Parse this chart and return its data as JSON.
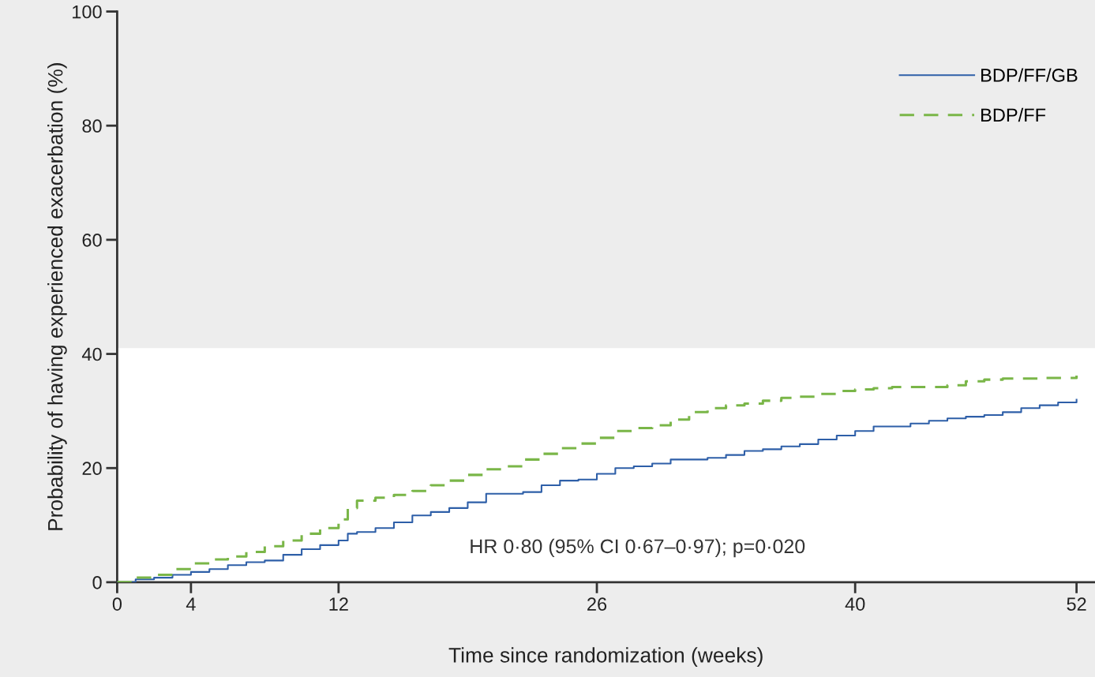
{
  "chart_data": {
    "type": "step",
    "xlabel": "Time since randomization (weeks)",
    "ylabel": "Probability of having experienced exacerbation (%)",
    "xlim": [
      0,
      53
    ],
    "xticks": [
      0,
      4,
      12,
      26,
      40,
      52
    ],
    "ylim": [
      0,
      100
    ],
    "yticks": [
      0,
      20,
      40,
      60,
      80,
      100
    ],
    "grid": false,
    "legend": "top right",
    "marker": "none",
    "bands": [
      {
        "axis": "y",
        "from": 0,
        "to": 41,
        "color": "#ffffff"
      }
    ],
    "annotations": [
      "HR 0·80 (95% CI 0·67–0·97); p=0·020"
    ],
    "series": [
      {
        "name": "BDP/FF/GB",
        "color": "#2e5fa8",
        "line_style": "solid",
        "x": [
          0,
          1,
          2,
          3,
          4,
          5,
          6,
          7,
          8,
          9,
          10,
          11,
          12,
          12.5,
          13,
          14,
          15,
          16,
          17,
          18,
          19,
          20,
          22,
          23,
          24,
          25,
          26,
          27,
          28,
          29,
          30,
          32,
          33,
          34,
          35,
          36,
          37,
          38,
          39,
          40,
          41,
          43,
          44,
          45,
          46,
          47,
          48,
          49,
          50,
          51,
          52
        ],
        "values": [
          0,
          0.5,
          0.8,
          1.3,
          1.8,
          2.3,
          3,
          3.5,
          3.8,
          4.8,
          5.8,
          6.5,
          7.3,
          8.5,
          8.8,
          9.5,
          10.5,
          11.7,
          12.3,
          13,
          14,
          15.5,
          15.8,
          17,
          17.8,
          18,
          19,
          20,
          20.3,
          20.8,
          21.5,
          21.8,
          22.3,
          23,
          23.3,
          23.8,
          24.2,
          25,
          25.7,
          26.5,
          27.3,
          27.8,
          28.3,
          28.7,
          29,
          29.3,
          29.8,
          30.5,
          31,
          31.5,
          32
        ]
      },
      {
        "name": "BDP/FF",
        "color": "#7ab648",
        "line_style": "dashed",
        "x": [
          0,
          1,
          2,
          3,
          4,
          5,
          6,
          7,
          8,
          9,
          10,
          11,
          12,
          12.5,
          13,
          14,
          15,
          16,
          17,
          18,
          19,
          20,
          21,
          22,
          23,
          24,
          25,
          26,
          27,
          28,
          29,
          30,
          31,
          32,
          33,
          34,
          35,
          36,
          37,
          38,
          39,
          40,
          41,
          42,
          45,
          46,
          47,
          48,
          50,
          52
        ],
        "values": [
          0,
          0.8,
          1.3,
          2.3,
          3.3,
          4,
          4.5,
          5.3,
          6.3,
          7.3,
          8.5,
          9.5,
          11,
          13,
          14.3,
          14.8,
          15.3,
          16,
          17,
          17.8,
          18.8,
          19.8,
          20.3,
          21.5,
          22.5,
          23.5,
          24.3,
          25.3,
          26.5,
          27,
          27.5,
          28.5,
          29.8,
          30.5,
          31,
          31.3,
          31.8,
          32.3,
          32.5,
          33,
          33.5,
          33.8,
          34,
          34.2,
          34.5,
          35.2,
          35.5,
          35.7,
          35.8,
          36.2
        ]
      }
    ]
  }
}
